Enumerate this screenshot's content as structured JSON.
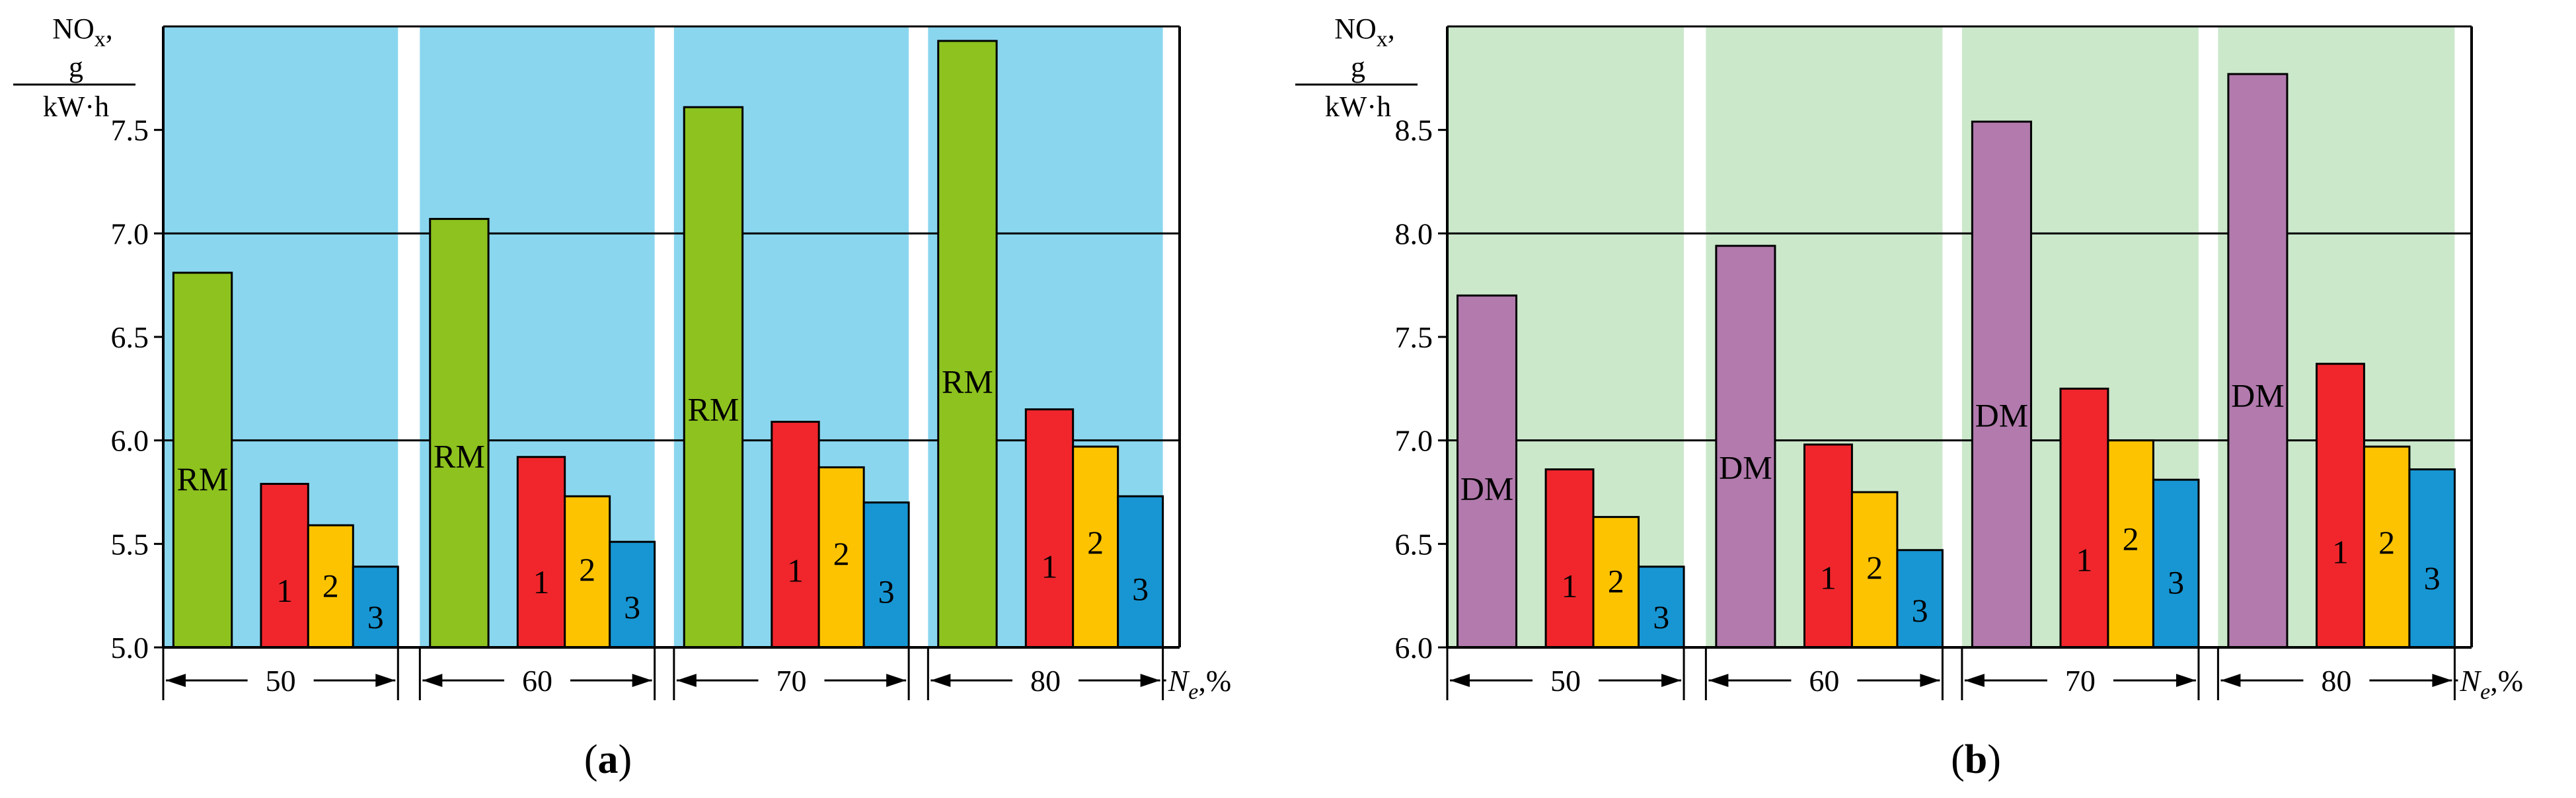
{
  "figure": {
    "colors": {
      "sub1": "#f0262c",
      "sub2": "#fdc300",
      "sub3": "#1796d3",
      "frame": "#000000"
    },
    "x_axis_unit": "N",
    "x_axis_unit_sub": "e",
    "x_axis_unit_suffix": ",%"
  },
  "chart_data": [
    {
      "type": "bar",
      "panel_label": "a",
      "ylabel_top": "NO",
      "ylabel_top_sub": "x",
      "ylabel_top_suffix": ",",
      "ylabel_numerator": "g",
      "ylabel_denominator": "kW·h",
      "xlabel": "Ne,%",
      "ylim": [
        5.0,
        8.0
      ],
      "y_ticks": [
        "5.0",
        "5.5",
        "6.0",
        "6.5",
        "7.0",
        "7.5"
      ],
      "gridlines": [
        6.0,
        7.0
      ],
      "background": "#8ad6ef",
      "categories": [
        "50",
        "60",
        "70",
        "80"
      ],
      "series": [
        {
          "name": "RM",
          "label": "RM",
          "color": "#8dc21f",
          "values": [
            6.81,
            7.07,
            7.61,
            7.93
          ]
        },
        {
          "name": "1",
          "label": "1",
          "color": "#f0262c",
          "values": [
            5.79,
            5.92,
            6.09,
            6.15
          ]
        },
        {
          "name": "2",
          "label": "2",
          "color": "#fdc300",
          "values": [
            5.59,
            5.73,
            5.87,
            5.97
          ]
        },
        {
          "name": "3",
          "label": "3",
          "color": "#1796d3",
          "values": [
            5.39,
            5.51,
            5.7,
            5.73
          ]
        }
      ]
    },
    {
      "type": "bar",
      "panel_label": "b",
      "ylabel_top": "NO",
      "ylabel_top_sub": "x",
      "ylabel_top_suffix": ",",
      "ylabel_numerator": "g",
      "ylabel_denominator": "kW·h",
      "xlabel": "Ne,%",
      "ylim": [
        6.0,
        9.0
      ],
      "y_ticks": [
        "6.0",
        "6.5",
        "7.0",
        "7.5",
        "8.0",
        "8.5"
      ],
      "gridlines": [
        7.0,
        8.0
      ],
      "background": "#cbe8cb",
      "categories": [
        "50",
        "60",
        "70",
        "80"
      ],
      "series": [
        {
          "name": "DM",
          "label": "DM",
          "color": "#b27aad",
          "values": [
            7.7,
            7.94,
            8.54,
            8.77
          ]
        },
        {
          "name": "1",
          "label": "1",
          "color": "#f0262c",
          "values": [
            6.86,
            6.98,
            7.25,
            7.37
          ]
        },
        {
          "name": "2",
          "label": "2",
          "color": "#fdc300",
          "values": [
            6.63,
            6.75,
            7.0,
            6.97
          ]
        },
        {
          "name": "3",
          "label": "3",
          "color": "#1796d3",
          "values": [
            6.39,
            6.47,
            6.81,
            6.86
          ]
        }
      ]
    }
  ]
}
